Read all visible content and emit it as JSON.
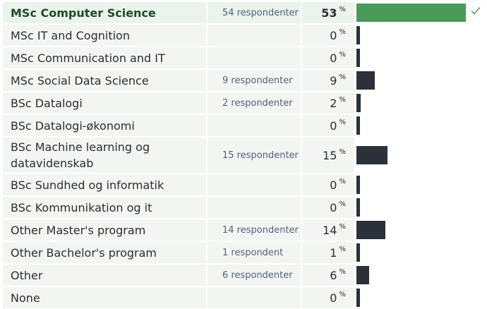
{
  "results": [
    {
      "label": "MSc Computer Science",
      "count": "54 respondenter",
      "percent": "53",
      "unit": "%",
      "value": 53,
      "selected": true,
      "icon": "checkmark-icon"
    },
    {
      "label": "MSc IT and Cognition",
      "count": "",
      "percent": "0",
      "unit": "%",
      "value": 0
    },
    {
      "label": "MSc Communication and IT",
      "count": "",
      "percent": "0",
      "unit": "%",
      "value": 0
    },
    {
      "label": "MSc Social Data Science",
      "count": "9 respondenter",
      "percent": "9",
      "unit": "%",
      "value": 9
    },
    {
      "label": "BSc Datalogi",
      "count": "2 respondenter",
      "percent": "2",
      "unit": "%",
      "value": 2
    },
    {
      "label": "BSc Datalogi-økonomi",
      "count": "",
      "percent": "0",
      "unit": "%",
      "value": 0
    },
    {
      "label": "BSc Machine learning og datavidenskab",
      "count": "15 respondenter",
      "percent": "15",
      "unit": "%",
      "value": 15
    },
    {
      "label": "BSc Sundhed og informatik",
      "count": "",
      "percent": "0",
      "unit": "%",
      "value": 0
    },
    {
      "label": "BSc Kommunikation og it",
      "count": "",
      "percent": "0",
      "unit": "%",
      "value": 0
    },
    {
      "label": "Other Master's program",
      "count": "14 respondenter",
      "percent": "14",
      "unit": "%",
      "value": 14
    },
    {
      "label": "Other Bachelor's program",
      "count": "1 respondent",
      "percent": "1",
      "unit": "%",
      "value": 1
    },
    {
      "label": "Other",
      "count": "6 respondenter",
      "percent": "6",
      "unit": "%",
      "value": 6
    },
    {
      "label": "None",
      "count": "",
      "percent": "0",
      "unit": "%",
      "value": 0
    }
  ],
  "colors": {
    "selected_bar": "#4a9a5c",
    "bar": "#2b3039",
    "selected_row_bg": "#eaf3ec",
    "row_bg": "#f3f5f3",
    "count_text": "#52627a"
  }
}
